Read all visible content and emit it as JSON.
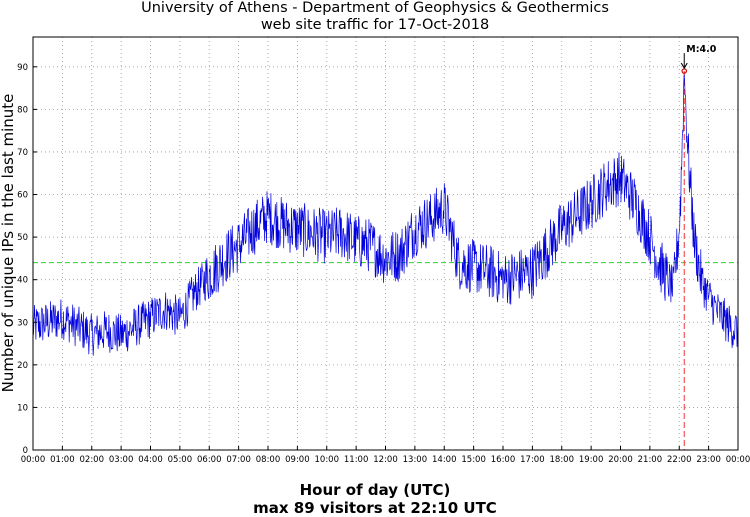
{
  "chart_data": {
    "type": "line",
    "title": "University of Athens - Department of Geophysics & Geothermics",
    "subtitle": "web site traffic for 17-Oct-2018",
    "xlabel": "Hour of day (UTC)",
    "ylabel": "Number of unique IPs in the last minute",
    "caption": "max 89 visitors at 22:10 UTC",
    "x_ticks": [
      "00:00",
      "01:00",
      "02:00",
      "03:00",
      "04:00",
      "05:00",
      "06:00",
      "07:00",
      "08:00",
      "09:00",
      "10:00",
      "11:00",
      "12:00",
      "13:00",
      "14:00",
      "15:00",
      "16:00",
      "17:00",
      "18:00",
      "19:00",
      "20:00",
      "21:00",
      "22:00",
      "23:00",
      "00:00"
    ],
    "y_ticks": [
      0,
      10,
      20,
      30,
      40,
      50,
      60,
      70,
      80,
      90
    ],
    "xlim": [
      0,
      24
    ],
    "ylim": [
      0,
      97
    ],
    "grid": true,
    "mean_line": {
      "value": 44,
      "color": "#33cc33"
    },
    "series": [
      {
        "color": "#0000dd",
        "x": [
          0,
          0.5,
          1,
          1.5,
          2,
          2.5,
          3,
          3.5,
          4,
          4.5,
          5,
          5.5,
          6,
          6.5,
          7,
          7.5,
          8,
          8.5,
          9,
          9.5,
          10,
          10.5,
          11,
          11.5,
          12,
          12.5,
          13,
          13.5,
          14,
          14.5,
          15,
          15.5,
          16,
          16.5,
          17,
          17.5,
          18,
          18.5,
          19,
          19.5,
          20,
          20.5,
          21,
          21.3,
          21.6,
          21.8,
          22,
          22.05,
          22.17,
          22.3,
          22.5,
          22.75,
          23,
          23.25,
          23.5,
          23.75,
          24
        ],
        "y": [
          29,
          30,
          31,
          29,
          27,
          28,
          27,
          29,
          31,
          33,
          31,
          37,
          41,
          45,
          48,
          52,
          55,
          53,
          52,
          51,
          50,
          51,
          49,
          48,
          45,
          46,
          52,
          54,
          57,
          44,
          43,
          42,
          40,
          41,
          42,
          47,
          52,
          55,
          58,
          62,
          64,
          58,
          50,
          44,
          40,
          38,
          52,
          60,
          89,
          70,
          50,
          40,
          36,
          33,
          31,
          29,
          28
        ]
      }
    ],
    "marker": {
      "x": 22.17,
      "y": 89,
      "label": "M:4.0",
      "color": "#cc0000"
    },
    "peak_line": {
      "x": 22.17,
      "color": "#ee3333"
    }
  }
}
